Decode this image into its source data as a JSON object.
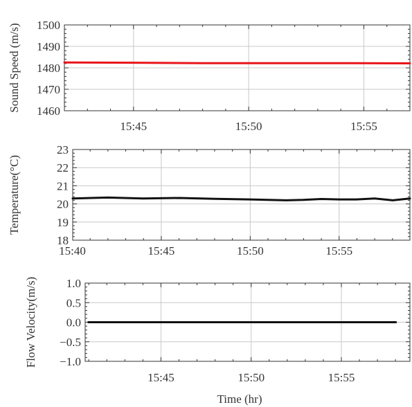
{
  "chart_data": [
    {
      "type": "line",
      "ylabel": "Sound Speed (m/s)",
      "ylim": [
        1460,
        1500
      ],
      "yticks": [
        "1460",
        "1470",
        "1480",
        "1490",
        "1500"
      ],
      "xlim": [
        15.7,
        15.95
      ],
      "xticks": [
        "15:45",
        "15:50",
        "15:55"
      ],
      "grid": true,
      "series": [
        {
          "color": "#e8141a",
          "x": [
            15.7,
            15.75,
            15.8,
            15.85,
            15.9,
            15.95
          ],
          "y": [
            1482.5,
            1482.4,
            1482.2,
            1482.2,
            1482.2,
            1482.1
          ]
        }
      ]
    },
    {
      "type": "line",
      "ylabel": "Temperature(°C)",
      "ylim": [
        18,
        23
      ],
      "yticks": [
        "18",
        "19",
        "20",
        "21",
        "22",
        "23"
      ],
      "xlim": [
        15.667,
        15.983
      ],
      "xticks": [
        "15:40",
        "15:45",
        "15:50",
        "15:55"
      ],
      "grid": true,
      "series": [
        {
          "color": "#111111",
          "x": [
            15.667,
            15.7,
            15.733,
            15.767,
            15.8,
            15.833,
            15.85,
            15.867,
            15.883,
            15.9,
            15.917,
            15.933,
            15.95,
            15.967,
            15.983
          ],
          "y": [
            20.3,
            20.35,
            20.3,
            20.33,
            20.28,
            20.25,
            20.22,
            20.2,
            20.22,
            20.27,
            20.25,
            20.25,
            20.3,
            20.2,
            20.3
          ]
        }
      ]
    },
    {
      "type": "line",
      "ylabel": "Flow Velocity(m/s)",
      "ylim": [
        -1.0,
        1.0
      ],
      "yticks": [
        "−1.0",
        "−0.5",
        "0.0",
        "0.5",
        "1.0"
      ],
      "xlim": [
        15.68,
        15.98
      ],
      "xticks": [
        "15:45",
        "15:50",
        "15:55"
      ],
      "grid": true,
      "series": [
        {
          "color": "#111111",
          "x": [
            15.683,
            15.967
          ],
          "y": [
            0.0,
            0.0
          ]
        }
      ]
    }
  ],
  "xlabel": "Time (hr)"
}
